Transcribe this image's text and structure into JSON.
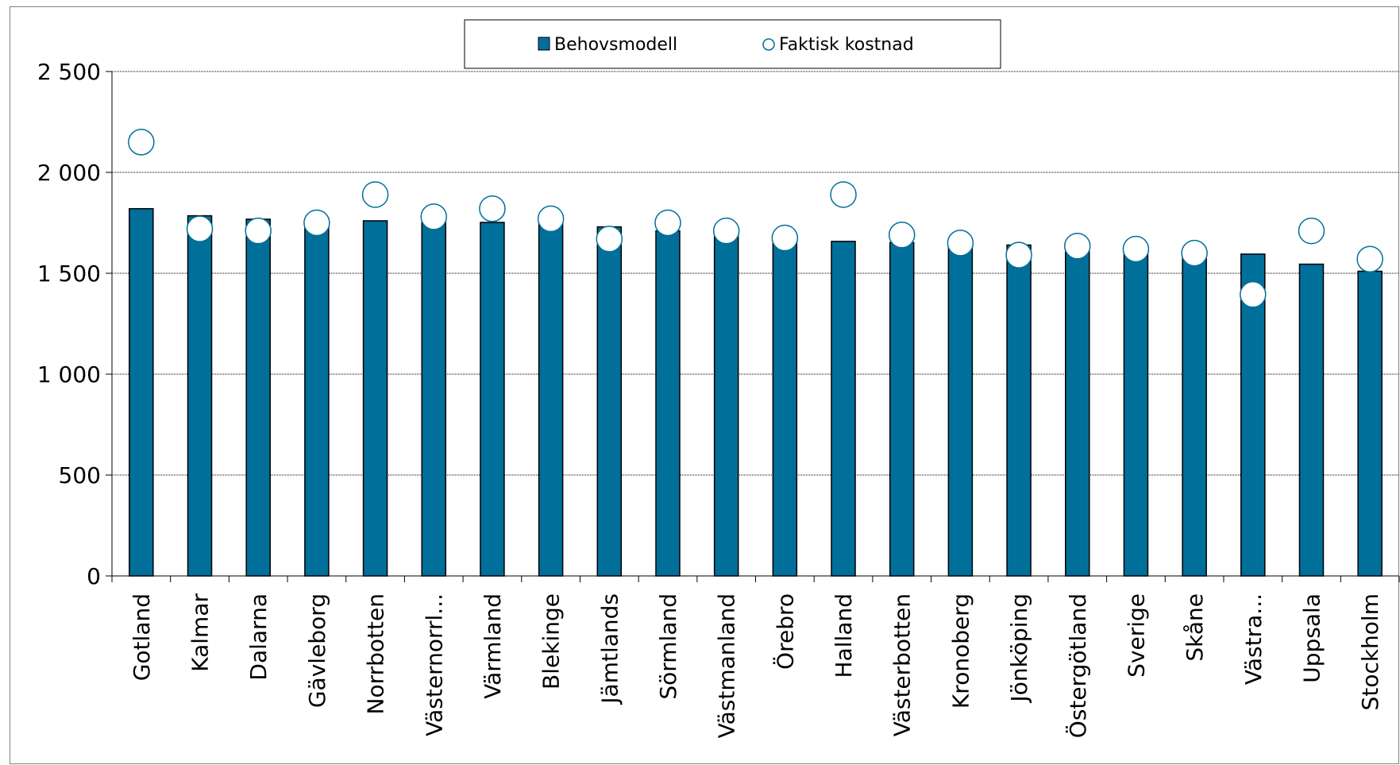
{
  "chart_data": {
    "type": "bar",
    "categories": [
      "Gotland",
      "Kalmar",
      "Dalarna",
      "Gävleborg",
      "Norrbotten",
      "Västernorrl...",
      "Värmland",
      "Blekinge",
      "Jämtlands",
      "Sörmland",
      "Västmanland",
      "Örebro",
      "Halland",
      "Västerbotten",
      "Kronoberg",
      "Jönköping",
      "Östergötland",
      "Sverige",
      "Skåne",
      "Västra...",
      "Uppsala",
      "Stockholm"
    ],
    "series": [
      {
        "name": "Behovsmodell",
        "kind": "bar",
        "color": "#006f9a",
        "values": [
          1820,
          1785,
          1768,
          1763,
          1760,
          1755,
          1752,
          1748,
          1730,
          1710,
          1692,
          1675,
          1658,
          1652,
          1645,
          1640,
          1625,
          1612,
          1605,
          1595,
          1545,
          1510
        ]
      },
      {
        "name": "Faktisk kostnad",
        "kind": "marker",
        "color": "#ffffff",
        "stroke": "#006f9a",
        "values": [
          2150,
          1720,
          1710,
          1750,
          1890,
          1780,
          1820,
          1770,
          1670,
          1750,
          1710,
          1675,
          1890,
          1690,
          1650,
          1590,
          1635,
          1620,
          1600,
          1395,
          1710,
          1570
        ]
      }
    ],
    "yticks": [
      "0",
      "500",
      "1 000",
      "1 500",
      "2 000",
      "2 500"
    ],
    "ytick_values": [
      0,
      500,
      1000,
      1500,
      2000,
      2500
    ],
    "ylim": [
      0,
      2500
    ],
    "grid": true,
    "legend_position": "top-center"
  }
}
